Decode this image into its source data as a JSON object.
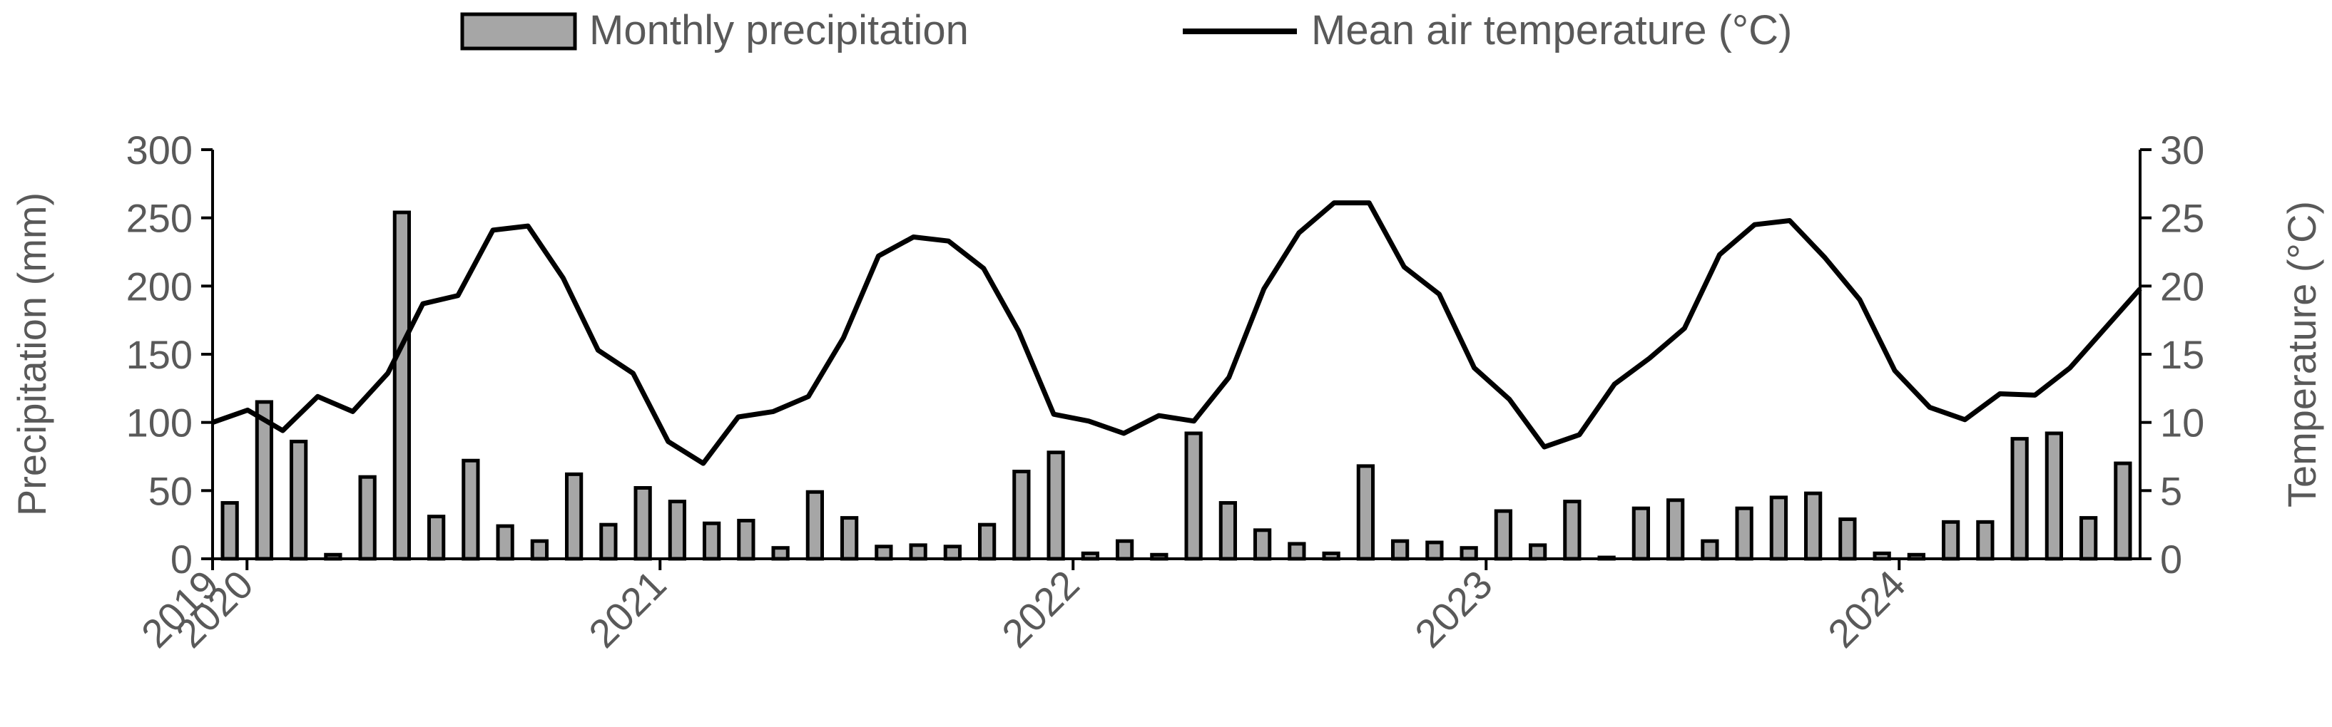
{
  "chart_data": {
    "type": "bar",
    "legend": {
      "placement": "top",
      "entries": [
        "Monthly precipitation",
        "Mean air temperature (°C)"
      ]
    },
    "ylabel": "Precipitation (mm)",
    "y2label": "Temperature (°C)",
    "ylim": [
      0,
      300
    ],
    "y2lim": [
      0,
      30
    ],
    "yticks": [
      "0",
      "50",
      "100",
      "150",
      "200",
      "250",
      "300"
    ],
    "y2ticks": [
      "0",
      "5",
      "10",
      "15",
      "20",
      "25",
      "30"
    ],
    "grid": false,
    "x_axis": {
      "start": "2019-12",
      "n_months": 56,
      "year_labels": [
        {
          "label": "2019",
          "at_month_index": 0
        },
        {
          "label": "2020",
          "at_month_index": 1
        },
        {
          "label": "2021",
          "at_month_index": 13
        },
        {
          "label": "2022",
          "at_month_index": 25
        },
        {
          "label": "2023",
          "at_month_index": 37
        },
        {
          "label": "2024",
          "at_month_index": 49
        }
      ]
    },
    "series": [
      {
        "name": "Monthly precipitation",
        "kind": "bar",
        "axis": "left",
        "values": [
          41,
          115,
          86,
          3,
          60,
          254,
          31,
          72,
          24,
          13,
          62,
          25,
          52,
          42,
          26,
          28,
          8,
          49,
          30,
          9,
          10,
          9,
          25,
          64,
          78,
          4,
          13,
          3,
          92,
          41,
          21,
          11,
          4,
          68,
          13,
          12,
          8,
          35,
          10,
          42,
          1,
          37,
          43,
          13,
          37,
          45,
          48,
          29,
          4,
          3,
          27,
          27,
          88,
          92,
          30,
          70
        ]
      },
      {
        "name": "Mean air temperature (°C)",
        "kind": "line",
        "axis": "right",
        "values": [
          10.0,
          10.9,
          9.4,
          11.9,
          10.8,
          13.6,
          18.7,
          19.3,
          24.1,
          24.4,
          20.6,
          15.3,
          13.6,
          8.6,
          7.0,
          10.4,
          10.8,
          11.9,
          16.2,
          22.2,
          23.6,
          23.3,
          21.3,
          16.7,
          10.6,
          10.1,
          9.2,
          10.5,
          10.1,
          13.3,
          19.8,
          23.9,
          26.1,
          26.1,
          21.4,
          19.4,
          14.0,
          11.7,
          8.2,
          9.1,
          12.8,
          14.7,
          16.9,
          22.3,
          24.5,
          24.8,
          22.1,
          19.0,
          13.8,
          11.1,
          10.2,
          12.1,
          12.0,
          14.0,
          16.9,
          19.8
        ]
      }
    ],
    "colors": {
      "bar_fill": "#a6a6a6",
      "bar_stroke": "#000000",
      "line": "#000000",
      "text": "#595959"
    }
  }
}
